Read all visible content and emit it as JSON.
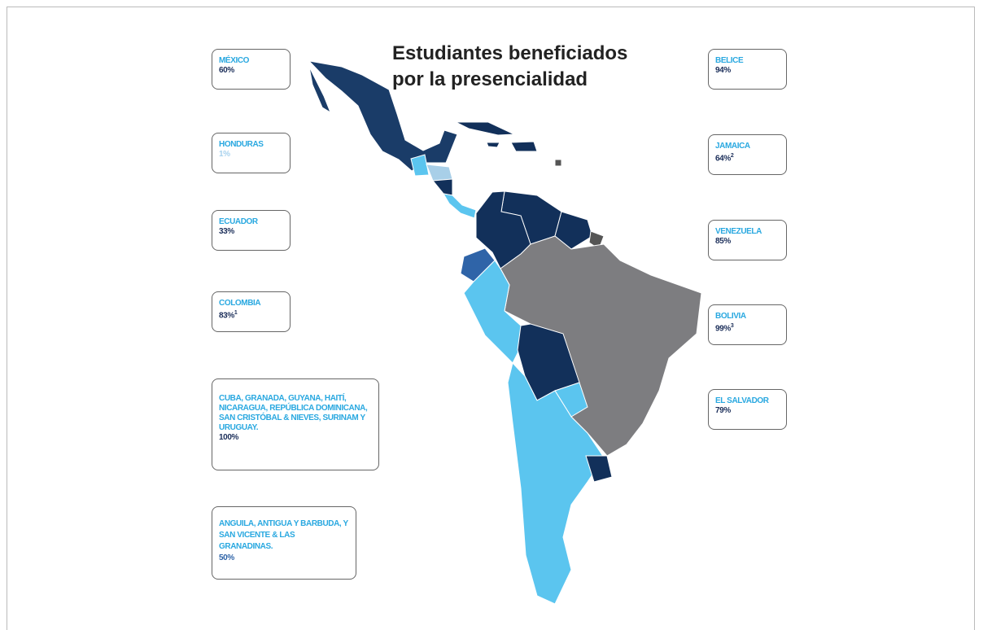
{
  "title_lines": [
    "Estudiantes beneficiados",
    "por la presencialidad"
  ],
  "left_boxes": [
    {
      "label": "MÉXICO",
      "value": "60%"
    },
    {
      "label": "HONDURAS",
      "value": "1%"
    },
    {
      "label": "ECUADOR",
      "value": "33%"
    },
    {
      "label": "COLOMBIA",
      "value": "83%",
      "note": "1"
    },
    {
      "label": "CUBA, GRANADA, GUYANA, HAITÍ, NICARAGUA, REPÚBLICA DOMINICANA, SAN CRISTÓBAL & NIEVES, SURINAM Y URUGUAY.",
      "value": "100%"
    },
    {
      "label": "ANGUILA, ANTIGUA Y BARBUDA, Y SAN VICENTE & LAS GRANADINAS.",
      "value": "50%"
    }
  ],
  "right_boxes": [
    {
      "label": "BELICE",
      "value": "94%"
    },
    {
      "label": "JAMAICA",
      "value": "64%",
      "note": "2"
    },
    {
      "label": "VENEZUELA",
      "value": "85%"
    },
    {
      "label": "BOLIVIA",
      "value": "99%",
      "note": "3"
    },
    {
      "label": "EL SALVADOR",
      "value": "79%"
    }
  ]
}
